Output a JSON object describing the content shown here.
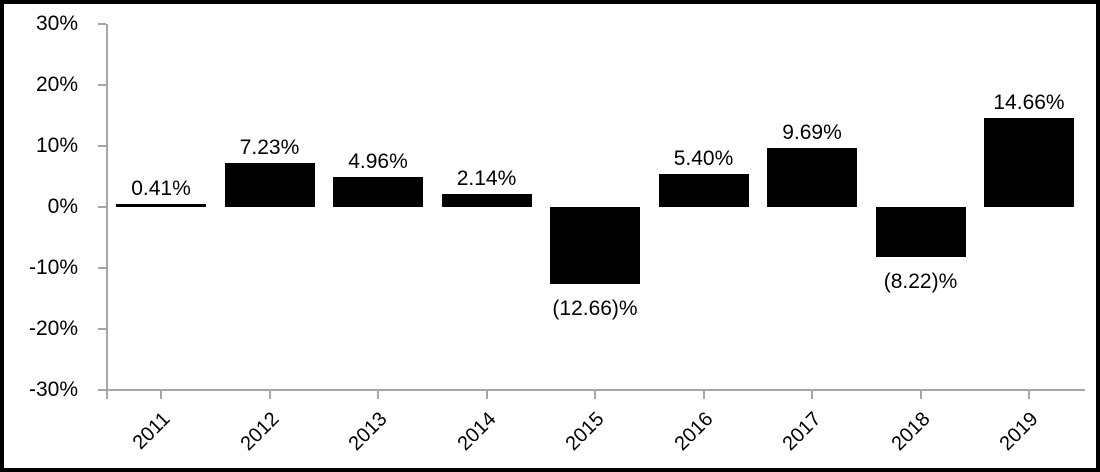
{
  "chart": {
    "background_color": "#ffffff",
    "border_color": "#000000",
    "axis_color": "#a6a6a6",
    "bar_color": "#000000",
    "text_color": "#000000",
    "title": ""
  },
  "chart_data": {
    "type": "bar",
    "categories": [
      "2011",
      "2012",
      "2013",
      "2014",
      "2015",
      "2016",
      "2017",
      "2018",
      "2019"
    ],
    "values": [
      0.41,
      7.23,
      4.96,
      2.14,
      -12.66,
      5.4,
      9.69,
      -8.22,
      14.66
    ],
    "data_labels": [
      "0.41%",
      "7.23%",
      "4.96%",
      "2.14%",
      "(12.66)%",
      "5.40%",
      "9.69%",
      "(8.22)%",
      "14.66%"
    ],
    "ytick_values": [
      30,
      20,
      10,
      0,
      -10,
      -20,
      -30
    ],
    "ytick_labels": [
      "30%",
      "20%",
      "10%",
      "0%",
      "-10%",
      "-20%",
      "-30%"
    ],
    "ylim": [
      -30,
      30
    ],
    "xlabel": "",
    "ylabel": "",
    "title": "",
    "grid": false,
    "legend": "none",
    "negative_label_style": "parentheses",
    "data_label_position": "outside-end",
    "xtick_label_rotation_deg": -45
  }
}
